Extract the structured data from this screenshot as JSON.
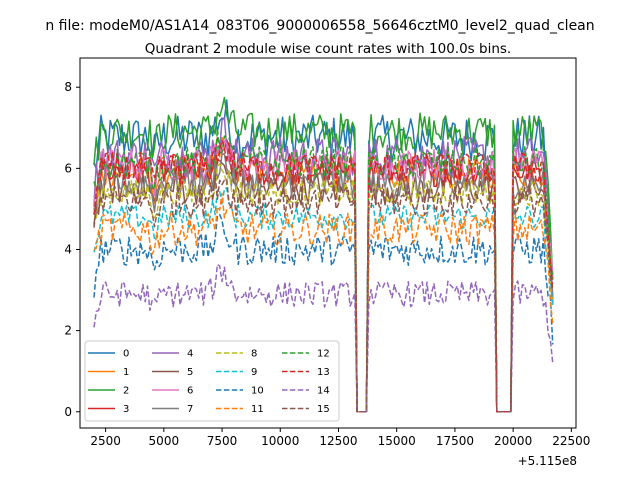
{
  "chart_data": {
    "type": "line",
    "suptitle": "n file: modeM0/AS1A14_083T06_9000006558_56646cztM0_level2_quad_clean",
    "title": "Quadrant 2 module wise count rates with 100.0s bins.",
    "xlabel": "",
    "ylabel": "",
    "offset_label": "+5.115e8",
    "xlim": [
      1400,
      22700
    ],
    "ylim": [
      -0.4,
      8.72
    ],
    "xticks": [
      2500,
      5000,
      7500,
      10000,
      12500,
      15000,
      17500,
      20000,
      22500
    ],
    "xtick_labels": [
      "2500",
      "5000",
      "7500",
      "10000",
      "12500",
      "15000",
      "17500",
      "20000",
      "22500"
    ],
    "yticks": [
      0,
      2,
      4,
      6,
      8
    ],
    "ytick_labels": [
      "0",
      "2",
      "4",
      "6",
      "8"
    ],
    "x_range": [
      2000,
      21700
    ],
    "bin_width": 100,
    "gaps": [
      [
        13300,
        13700
      ],
      [
        19300,
        19900
      ]
    ],
    "legend_position": "lower-left",
    "series": [
      {
        "name": "0",
        "mean": 6.75,
        "noise": 0.35,
        "color": "#1f77b4",
        "style": "solid"
      },
      {
        "name": "1",
        "mean": 5.9,
        "noise": 0.25,
        "color": "#ff7f0e",
        "style": "solid"
      },
      {
        "name": "2",
        "mean": 6.9,
        "noise": 0.3,
        "color": "#2ca02c",
        "style": "solid"
      },
      {
        "name": "3",
        "mean": 5.95,
        "noise": 0.25,
        "color": "#d62728",
        "style": "solid"
      },
      {
        "name": "4",
        "mean": 6.3,
        "noise": 0.3,
        "color": "#9467bd",
        "style": "solid"
      },
      {
        "name": "5",
        "mean": 5.5,
        "noise": 0.25,
        "color": "#8c564b",
        "style": "solid"
      },
      {
        "name": "6",
        "mean": 6.1,
        "noise": 0.25,
        "color": "#e377c2",
        "style": "solid"
      },
      {
        "name": "7",
        "mean": 5.65,
        "noise": 0.25,
        "color": "#7f7f7f",
        "style": "solid"
      },
      {
        "name": "8",
        "mean": 5.4,
        "noise": 0.2,
        "color": "#bcbd22",
        "style": "dashed"
      },
      {
        "name": "9",
        "mean": 4.8,
        "noise": 0.2,
        "color": "#17becf",
        "style": "dashed"
      },
      {
        "name": "10",
        "mean": 4.0,
        "noise": 0.25,
        "color": "#1f77b4",
        "style": "dashed"
      },
      {
        "name": "11",
        "mean": 4.5,
        "noise": 0.25,
        "color": "#ff7f0e",
        "style": "dashed"
      },
      {
        "name": "12",
        "mean": 6.15,
        "noise": 0.25,
        "color": "#2ca02c",
        "style": "dashed"
      },
      {
        "name": "13",
        "mean": 6.0,
        "noise": 0.25,
        "color": "#d62728",
        "style": "dashed"
      },
      {
        "name": "14",
        "mean": 2.9,
        "noise": 0.2,
        "color": "#9467bd",
        "style": "dashed"
      },
      {
        "name": "15",
        "mean": 5.2,
        "noise": 0.25,
        "color": "#8c564b",
        "style": "dashed"
      }
    ]
  }
}
